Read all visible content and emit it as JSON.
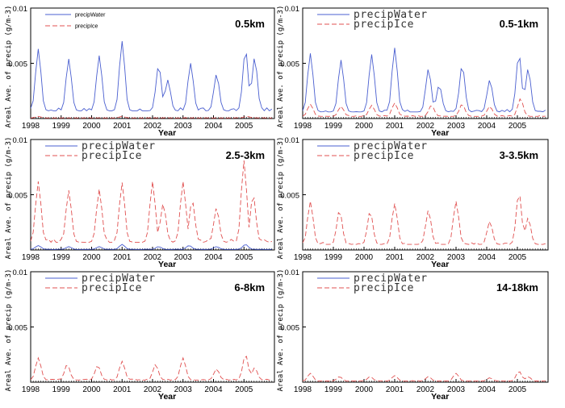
{
  "chart_data": [
    {
      "type": "line",
      "title": "0.5km",
      "ylabel": "Areal Ave. of precip (g/m-3)",
      "xlabel": "Year",
      "x_ticks": [
        "1998",
        "1999",
        "2000",
        "2001",
        "2002",
        "2003",
        "2004",
        "2005"
      ],
      "y_ticks": [
        "0.01",
        "0.005"
      ],
      "ylim": [
        0,
        0.01
      ],
      "xlim": [
        1998,
        2006
      ],
      "legend_style": "small",
      "colors": {
        "precipWater": "#4a5fd0",
        "precipIce": "#e05050"
      },
      "series": [
        {
          "name": "precipWater",
          "peaks": [
            [
              1998.25,
              0.0063
            ],
            [
              1999.25,
              0.0054
            ],
            [
              2000.25,
              0.0057
            ],
            [
              2001.0,
              0.007
            ],
            [
              2002.2,
              0.0048
            ],
            [
              2002.5,
              0.0035
            ],
            [
              2003.25,
              0.005
            ],
            [
              2004.1,
              0.004
            ],
            [
              2005.05,
              0.0062
            ],
            [
              2005.35,
              0.0055
            ]
          ],
          "base": 0.0007
        },
        {
          "name": "precipIce",
          "peaks": [
            [
              1998.25,
              0.0002
            ],
            [
              2001.0,
              0.0002
            ],
            [
              2005.1,
              0.0002
            ]
          ],
          "base": 5e-05
        }
      ]
    },
    {
      "type": "line",
      "title": "0.5-1km",
      "ylabel": "Areal Ave. of precip (g/m-3)",
      "xlabel": "Year",
      "x_ticks": [
        "1998",
        "1999",
        "2000",
        "2001",
        "2002",
        "2003",
        "2004",
        "2005"
      ],
      "y_ticks": [
        "0.01",
        "0.005"
      ],
      "ylim": [
        0,
        0.01
      ],
      "xlim": [
        1998,
        2006
      ],
      "legend_style": "large",
      "colors": {
        "precipWater": "#4a5fd0",
        "precipIce": "#e05050"
      },
      "series": [
        {
          "name": "precipWater",
          "peaks": [
            [
              1998.25,
              0.0059
            ],
            [
              1999.25,
              0.0053
            ],
            [
              2000.25,
              0.0058
            ],
            [
              2001.0,
              0.0064
            ],
            [
              2002.1,
              0.0045
            ],
            [
              2002.45,
              0.003
            ],
            [
              2003.2,
              0.0048
            ],
            [
              2004.1,
              0.0035
            ],
            [
              2005.05,
              0.0058
            ],
            [
              2005.35,
              0.0045
            ]
          ],
          "base": 0.0006
        },
        {
          "name": "precipIce",
          "peaks": [
            [
              1998.25,
              0.0013
            ],
            [
              1999.25,
              0.0011
            ],
            [
              2000.25,
              0.0012
            ],
            [
              2001.0,
              0.0014
            ],
            [
              2002.2,
              0.0012
            ],
            [
              2003.2,
              0.0013
            ],
            [
              2004.1,
              0.0011
            ],
            [
              2005.1,
              0.0018
            ]
          ],
          "base": 0.0002
        }
      ]
    },
    {
      "type": "line",
      "title": "2.5-3km",
      "ylabel": "Areal Ave. of precip (g/m-3)",
      "xlabel": "Year",
      "x_ticks": [
        "1998",
        "1999",
        "2000",
        "2001",
        "2002",
        "2003",
        "2004",
        "2005"
      ],
      "y_ticks": [
        "0.01",
        "0.005"
      ],
      "ylim": [
        0,
        0.01
      ],
      "xlim": [
        1998,
        2006
      ],
      "legend_style": "large",
      "colors": {
        "precipWater": "#4a5fd0",
        "precipIce": "#e05050"
      },
      "series": [
        {
          "name": "precipWater",
          "peaks": [
            [
              1998.25,
              0.0004
            ],
            [
              1999.25,
              0.0003
            ],
            [
              2000.25,
              0.0003
            ],
            [
              2001.0,
              0.0005
            ],
            [
              2002.2,
              0.0003
            ],
            [
              2003.2,
              0.0004
            ],
            [
              2004.1,
              0.0003
            ],
            [
              2005.05,
              0.0005
            ]
          ],
          "base": 5e-05
        },
        {
          "name": "precipIce",
          "peaks": [
            [
              1998.25,
              0.0062
            ],
            [
              1999.25,
              0.0054
            ],
            [
              2000.25,
              0.0055
            ],
            [
              2001.0,
              0.0061
            ],
            [
              2002.0,
              0.0062
            ],
            [
              2002.35,
              0.0042
            ],
            [
              2003.0,
              0.0062
            ],
            [
              2003.3,
              0.0045
            ],
            [
              2004.1,
              0.0038
            ],
            [
              2005.0,
              0.0081
            ],
            [
              2005.3,
              0.005
            ]
          ],
          "base": 0.0007
        }
      ]
    },
    {
      "type": "line",
      "title": "3-3.5km",
      "ylabel": "Areal Ave. of precip (g/m-3)",
      "xlabel": "Year",
      "x_ticks": [
        "1998",
        "1999",
        "2000",
        "2001",
        "2002",
        "2003",
        "2004",
        "2005"
      ],
      "y_ticks": [
        "0.01",
        "0.005"
      ],
      "ylim": [
        0,
        0.01
      ],
      "xlim": [
        1998,
        2006
      ],
      "legend_style": "large",
      "colors": {
        "precipWater": "#4a5fd0",
        "precipIce": "#e05050"
      },
      "series": [
        {
          "name": "precipWater",
          "peaks": [],
          "base": 0.0
        },
        {
          "name": "precipIce",
          "peaks": [
            [
              1998.25,
              0.0044
            ],
            [
              1999.2,
              0.0036
            ],
            [
              2000.2,
              0.0035
            ],
            [
              2001.0,
              0.0042
            ],
            [
              2002.1,
              0.0036
            ],
            [
              2003.0,
              0.0044
            ],
            [
              2004.1,
              0.0026
            ],
            [
              2005.05,
              0.0052
            ],
            [
              2005.35,
              0.0029
            ]
          ],
          "base": 0.0005
        }
      ]
    },
    {
      "type": "line",
      "title": "6-8km",
      "ylabel": "Areal Ave. of precip (g/m-3)",
      "xlabel": "Year",
      "x_ticks": [
        "1998",
        "1999",
        "2000",
        "2001",
        "2002",
        "2003",
        "2004",
        "2005"
      ],
      "y_ticks": [
        "0.01",
        "0.005"
      ],
      "ylim": [
        0,
        0.01
      ],
      "xlim": [
        1998,
        2006
      ],
      "legend_style": "large",
      "colors": {
        "precipWater": "#4a5fd0",
        "precipIce": "#e05050"
      },
      "series": [
        {
          "name": "precipWater",
          "peaks": [],
          "base": 0.0
        },
        {
          "name": "precipIce",
          "peaks": [
            [
              1998.25,
              0.0022
            ],
            [
              1999.2,
              0.0016
            ],
            [
              2000.2,
              0.0015
            ],
            [
              2001.0,
              0.0019
            ],
            [
              2002.1,
              0.0016
            ],
            [
              2003.0,
              0.0022
            ],
            [
              2004.1,
              0.0012
            ],
            [
              2005.05,
              0.0025
            ],
            [
              2005.35,
              0.0013
            ]
          ],
          "base": 0.0002
        }
      ]
    },
    {
      "type": "line",
      "title": "14-18km",
      "ylabel": "Areal Ave. of precip (g/m-3)",
      "xlabel": "Year",
      "x_ticks": [
        "1998",
        "1999",
        "2000",
        "2001",
        "2002",
        "2003",
        "2004",
        "2005"
      ],
      "y_ticks": [
        "0.01",
        "0.005"
      ],
      "ylim": [
        0,
        0.01
      ],
      "xlim": [
        1998,
        2006
      ],
      "legend_style": "large",
      "colors": {
        "precipWater": "#4a5fd0",
        "precipIce": "#e05050"
      },
      "series": [
        {
          "name": "precipWater",
          "peaks": [],
          "base": 0.0
        },
        {
          "name": "precipIce",
          "peaks": [
            [
              1998.25,
              0.0008
            ],
            [
              1999.2,
              0.0005
            ],
            [
              2000.2,
              0.0005
            ],
            [
              2001.0,
              0.0006
            ],
            [
              2002.1,
              0.0005
            ],
            [
              2003.0,
              0.0008
            ],
            [
              2004.1,
              0.0004
            ],
            [
              2005.05,
              0.001
            ],
            [
              2005.35,
              0.0005
            ]
          ],
          "base": 0.0001
        }
      ]
    }
  ]
}
